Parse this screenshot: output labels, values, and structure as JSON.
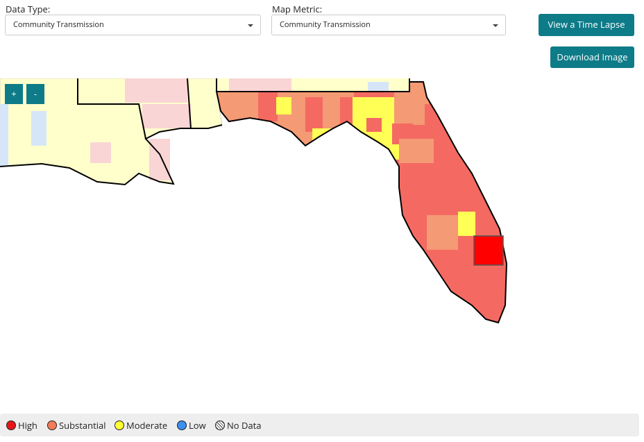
{
  "controls": {
    "data_type_label": "Data Type:",
    "data_type_value": "Community Transmission",
    "map_metric_label": "Map Metric:",
    "map_metric_value": "Community Transmission"
  },
  "buttons": {
    "time_lapse": "View a Time Lapse",
    "download": "Download Image",
    "zoom_in": "+",
    "zoom_out": "-"
  },
  "legend": {
    "high": "High",
    "substantial": "Substantial",
    "moderate": "Moderate",
    "low": "Low",
    "no_data": "No Data"
  }
}
